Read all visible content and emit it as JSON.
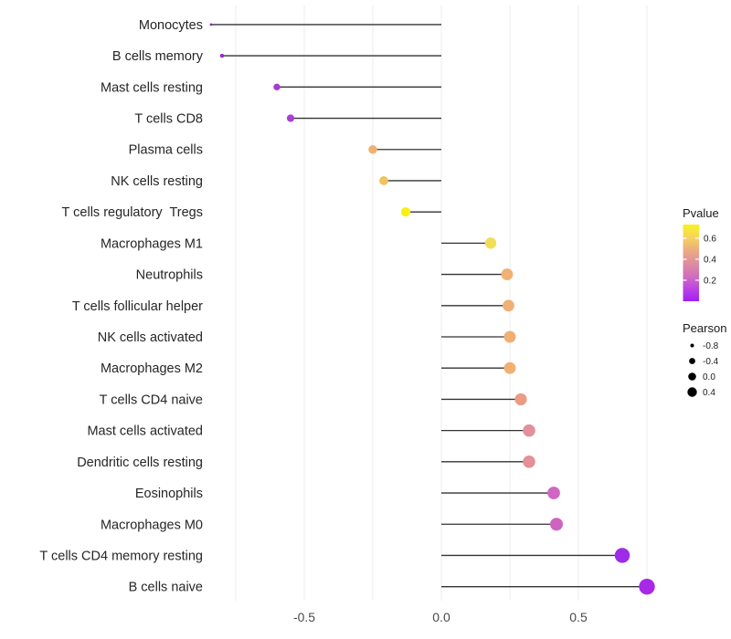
{
  "chart_data": {
    "type": "scatter",
    "subtype": "lollipop",
    "title": "",
    "xlabel": "",
    "ylabel": "",
    "xlim": [
      -0.92,
      0.83
    ],
    "x_ticks": [
      -0.5,
      0.0,
      0.5
    ],
    "x_tick_labels": [
      "-0.5",
      "0.0",
      "0.5"
    ],
    "gridlines_x": [
      -0.75,
      -0.5,
      -0.25,
      0.0,
      0.25,
      0.5,
      0.75
    ],
    "grid": "vertical-only",
    "baseline_x": 0.0,
    "categories": [
      "Monocytes",
      "B cells memory",
      "Mast cells resting",
      "T cells CD8",
      "Plasma cells",
      "NK cells resting",
      "T cells regulatory  Tregs",
      "Macrophages M1",
      "Neutrophils",
      "T cells follicular helper",
      "NK cells activated",
      "Macrophages M2",
      "T cells CD4 naive",
      "Mast cells activated",
      "Dendritic cells resting",
      "Eosinophils",
      "Macrophages M0",
      "T cells CD4 memory resting",
      "B cells naive"
    ],
    "series": [
      {
        "name": "Pearson",
        "values": [
          -0.84,
          -0.8,
          -0.6,
          -0.55,
          -0.25,
          -0.21,
          -0.13,
          0.18,
          0.24,
          0.245,
          0.25,
          0.25,
          0.29,
          0.32,
          0.32,
          0.41,
          0.42,
          0.66,
          0.75
        ]
      }
    ],
    "point_colors": [
      "#8E24C4",
      "#9629CC",
      "#A53BD5",
      "#A93FD3",
      "#EDB172",
      "#EFC35F",
      "#FAF00D",
      "#F2DE55",
      "#F0B175",
      "#F0B175",
      "#F0AF73",
      "#F0B072",
      "#E99C82",
      "#E2909B",
      "#E39097",
      "#D266C3",
      "#CE63C0",
      "#9E2BEA",
      "#A928E8"
    ],
    "point_radii": [
      1.4,
      2.2,
      3.7,
      4.1,
      4.8,
      4.9,
      5.1,
      6.2,
      6.4,
      6.4,
      6.5,
      6.5,
      6.6,
      6.8,
      6.8,
      6.9,
      7.0,
      8.2,
      8.7
    ],
    "legend_position": "right",
    "legend_pvalue": {
      "title": "Pvalue",
      "tick_labels": [
        "0.6",
        "0.4",
        "0.2"
      ],
      "gradient_top_to_bottom": [
        "#FAF21E",
        "#F5D45F",
        "#EBAC80",
        "#DF8F9E",
        "#D26FBC",
        "#BC45E0",
        "#A21EF5"
      ]
    },
    "legend_pearson": {
      "title": "Pearson",
      "items": [
        {
          "label": "-0.8",
          "r": 2.0
        },
        {
          "label": "-0.4",
          "r": 3.4
        },
        {
          "label": "0.0",
          "r": 4.3
        },
        {
          "label": "0.4",
          "r": 5.2
        }
      ],
      "dot_color": "#000000"
    },
    "colors": {
      "background": "#FFFFFF",
      "gridline": "#ECECEC",
      "stem": "#333333",
      "y_axis_text": "#262626",
      "x_axis_text": "#4A4A4A",
      "legend_text": "#1A1A1A"
    }
  }
}
